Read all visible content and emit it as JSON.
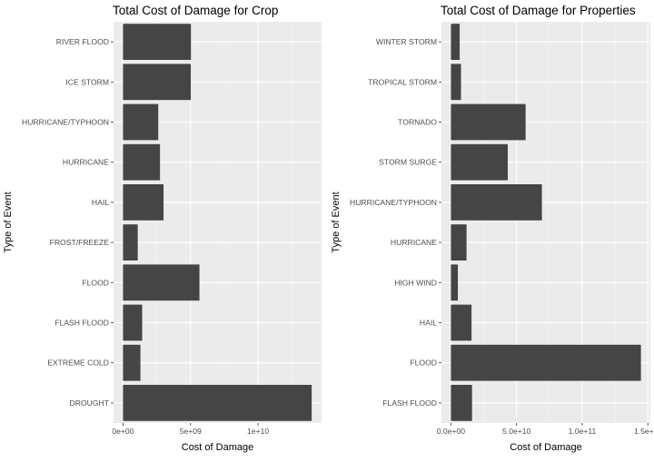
{
  "colors": {
    "panel_bg": "#ebebeb",
    "grid_major": "#ffffff",
    "grid_minor": "#f5f5f5",
    "bar": "#454545",
    "tick": "#333333"
  },
  "chart_data": [
    {
      "type": "bar",
      "orientation": "horizontal",
      "title": "Total Cost of Damage for Crop",
      "xlabel": "Cost of Damage",
      "ylabel": "Type of Event",
      "categories": [
        "DROUGHT",
        "EXTREME COLD",
        "FLASH FLOOD",
        "FLOOD",
        "FROST/FREEZE",
        "HAIL",
        "HURRICANE",
        "HURRICANE/TYPHOON",
        "ICE STORM",
        "RIVER FLOOD"
      ],
      "values": [
        13970000000,
        1290000000,
        1420000000,
        5660000000,
        1090000000,
        3000000000,
        2740000000,
        2610000000,
        5020000000,
        5030000000
      ],
      "xlim": [
        -700000000,
        14700000000
      ],
      "x_ticks": [
        0,
        5000000000,
        10000000000
      ],
      "x_tick_labels": [
        "0e+00",
        "5e+09",
        "1e+10"
      ],
      "grid": true
    },
    {
      "type": "bar",
      "orientation": "horizontal",
      "title": "Total Cost of Damage for Properties",
      "xlabel": "Cost of Damage",
      "ylabel": "Type of Event",
      "categories": [
        "FLASH FLOOD",
        "FLOOD",
        "HAIL",
        "HIGH WIND",
        "HURRICANE",
        "HURRICANE/TYPHOON",
        "STORM SURGE",
        "TORNADO",
        "TROPICAL STORM",
        "WINTER STORM"
      ],
      "values": [
        16100000000,
        144700000000,
        15700000000,
        5300000000,
        11900000000,
        69300000000,
        43300000000,
        56900000000,
        7700000000,
        6700000000
      ],
      "xlim": [
        -7200000000,
        151900000000
      ],
      "x_ticks": [
        0,
        50000000000,
        100000000000,
        150000000000
      ],
      "x_tick_labels": [
        "0.0e+00",
        "5.0e+10",
        "1.0e+11",
        "1.5e+11"
      ],
      "grid": true
    }
  ]
}
